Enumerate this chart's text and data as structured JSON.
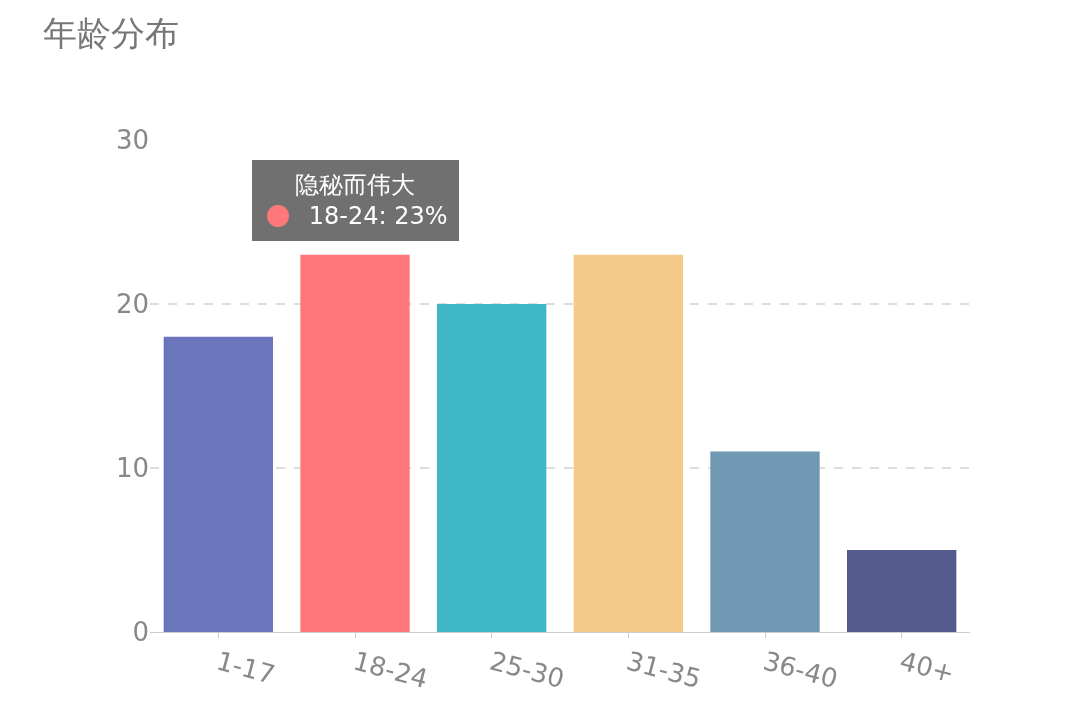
{
  "chart_data": {
    "type": "bar",
    "title": "年龄分布",
    "categories": [
      "1-17",
      "18-24",
      "25-30",
      "31-35",
      "36-40",
      "40+"
    ],
    "series": [
      {
        "name": "隐秘而伟大",
        "colors": [
          "#6a75bb",
          "#fe777b",
          "#40b7c6",
          "#f4ca88",
          "#6f98b3",
          "#525a8e"
        ],
        "values": [
          18,
          23,
          20,
          23,
          11,
          5
        ]
      }
    ],
    "ylim": [
      0,
      30
    ],
    "yticks": [
      0,
      10,
      20,
      30
    ],
    "grid": "y",
    "annotations": [
      {
        "text": "18-24: 23%",
        "x": "18-24",
        "y": 23
      }
    ]
  }
}
